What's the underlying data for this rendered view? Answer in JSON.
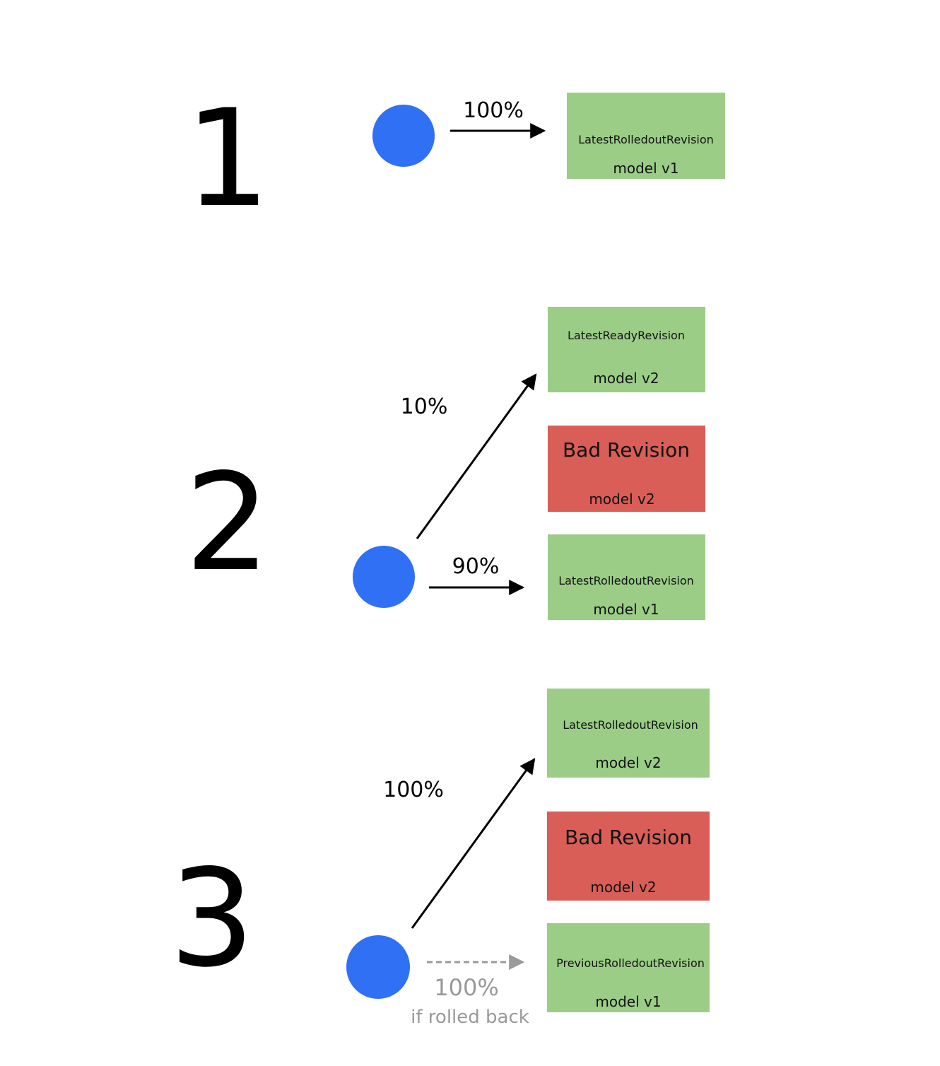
{
  "colors": {
    "node": "#3070F5",
    "ok_box": "#9BCD87",
    "bad_box": "#D95E58",
    "arrow": "#000000",
    "rollback_arrow": "#9A9A9A"
  },
  "steps": [
    {
      "number": "1",
      "arrows": [
        {
          "label": "100%"
        }
      ],
      "boxes": [
        {
          "title": "LatestRolledoutRevision",
          "subtitle": "model v1",
          "status": "ok"
        }
      ]
    },
    {
      "number": "2",
      "arrows": [
        {
          "label": "10%"
        },
        {
          "label": "90%"
        }
      ],
      "boxes": [
        {
          "title": "LatestReadyRevision",
          "subtitle": "model v2",
          "status": "ok"
        },
        {
          "title": "Bad Revision",
          "subtitle": "model v2",
          "status": "bad"
        },
        {
          "title": "LatestRolledoutRevision",
          "subtitle": "model v1",
          "status": "ok"
        }
      ]
    },
    {
      "number": "3",
      "arrows": [
        {
          "label": "100%"
        },
        {
          "label": "100%",
          "note": "if rolled back"
        }
      ],
      "boxes": [
        {
          "title": "LatestRolledoutRevision",
          "subtitle": "model v2",
          "status": "ok"
        },
        {
          "title": "Bad Revision",
          "subtitle": "model v2",
          "status": "bad"
        },
        {
          "title": "PreviousRolledoutRevision",
          "subtitle": "model v1",
          "status": "ok"
        }
      ]
    }
  ]
}
